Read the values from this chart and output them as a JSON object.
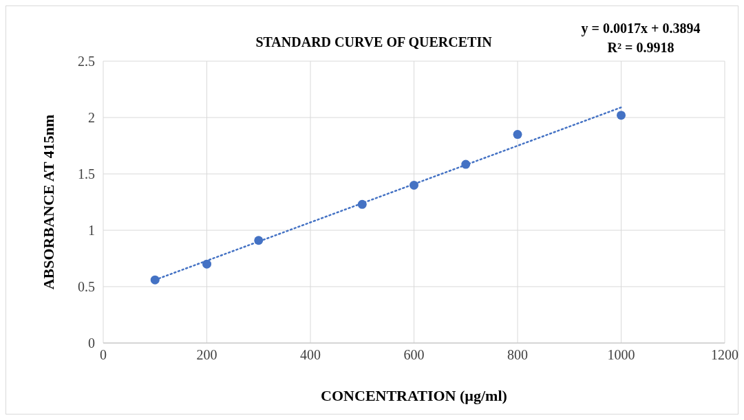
{
  "chart_data": {
    "type": "scatter",
    "title": "STANDARD CURVE OF QUERCETIN",
    "xlabel": "CONCENTRATION (µg/ml)",
    "ylabel": "ABSORBANCE AT 415nm",
    "x": [
      100,
      200,
      300,
      500,
      600,
      700,
      800,
      1000
    ],
    "series": [
      {
        "color": "#4472c4",
        "marker": "circle",
        "values": [
          0.56,
          0.7,
          0.91,
          1.23,
          1.4,
          1.585,
          1.85,
          2.02
        ]
      },
      {
        "type": "line",
        "color": "#4472c4",
        "x": [
          100,
          1000
        ],
        "values": [
          0.56,
          2.09
        ],
        "line_style": "dotted",
        "marker": "none"
      }
    ],
    "xlim": [
      0,
      1200
    ],
    "xticks": [
      0,
      200,
      400,
      600,
      800,
      1000,
      1200
    ],
    "ylim": [
      0,
      2.5
    ],
    "yticks": [
      0,
      0.5,
      1,
      1.5,
      2,
      2.5
    ],
    "grid": true,
    "annotations": [
      "y = 0.0017x + 0.3894",
      "R² = 0.9918"
    ]
  }
}
